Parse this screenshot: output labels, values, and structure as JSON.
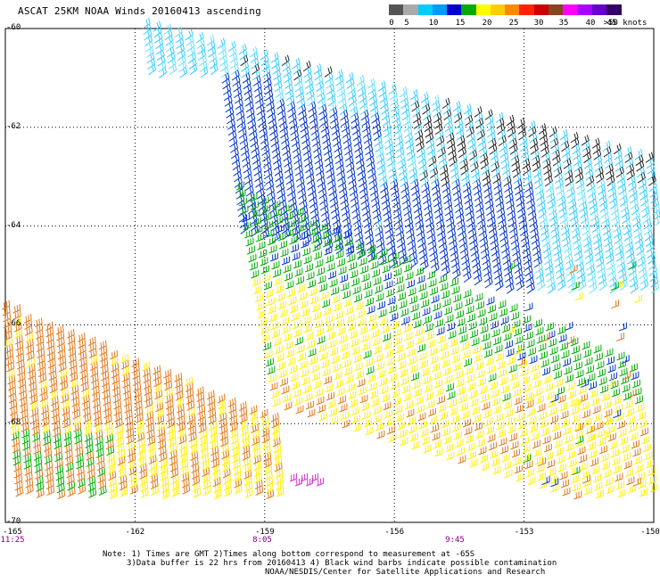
{
  "title": "ASCAT 25KM NOAA Winds 20160413 ascending",
  "legend": {
    "ticks": [
      "0",
      "5",
      "10",
      "15",
      "20",
      "25",
      "30",
      "35",
      "40",
      "45",
      ">50 knots"
    ],
    "colors": [
      "#555555",
      "#aaaaaa",
      "#00ccff",
      "#0099ff",
      "#0000cc",
      "#00aa00",
      "#ffff00",
      "#ffcc00",
      "#ff8800",
      "#ff2200",
      "#cc0000",
      "#884422",
      "#ff00ff",
      "#aa00ff",
      "#6600cc",
      "#330066"
    ]
  },
  "latitudes": [
    "-60",
    "-62",
    "-64",
    "-66",
    "-68",
    "-70"
  ],
  "longitudes": [
    "-165",
    "-162",
    "-159",
    "-156",
    "-153",
    "-150"
  ],
  "times": [
    "11:25",
    "8:05",
    "9:45"
  ],
  "notes": {
    "line1": "Note: 1) Times are GMT 2)Times along bottom correspond to measurement at -65S",
    "line2": "3)Data buffer is 22 hrs from 20160413 4) Black wind barbs indicate possible contamination",
    "line3": "NOAA/NESDIS/Center for Satellite Applications and Research"
  },
  "map_data": {
    "lat_range": [
      -70,
      -60
    ],
    "lon_range": [
      -165,
      -150
    ],
    "wind_speed_classes": {
      "cyan": "10-15 knots",
      "blue": "15-20 knots",
      "green": "20 knots",
      "yellow": "25 knots",
      "orange": "30-35 knots",
      "brown": "35-40 knots",
      "black": "possible contamination"
    }
  }
}
